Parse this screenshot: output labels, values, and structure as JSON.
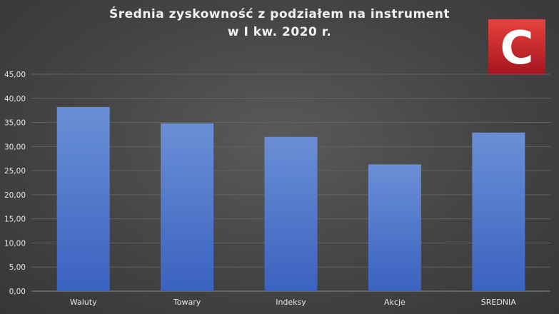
{
  "chart_data": {
    "type": "bar",
    "title_lines": [
      "Średnia zyskowność z podziałem na instrument",
      "w I kw. 2020 r."
    ],
    "categories": [
      "Waluty",
      "Towary",
      "Indeksy",
      "Akcje",
      "ŚREDNIA"
    ],
    "values": [
      38.2,
      34.8,
      32.0,
      26.3,
      32.9
    ],
    "ylim": [
      0,
      45
    ],
    "yticks": [
      "0,00",
      "5,00",
      "10,00",
      "15,00",
      "20,00",
      "25,00",
      "30,00",
      "35,00",
      "40,00",
      "45,00"
    ],
    "ytick_values": [
      0,
      5,
      10,
      15,
      20,
      25,
      30,
      35,
      40,
      45
    ],
    "grid": true,
    "bar_color_top": "#6b8fd6",
    "bar_color_bottom": "#3a62c0"
  },
  "logo": {
    "letter": "C",
    "color_top": "#e8423e",
    "color_bottom": "#a5141d"
  }
}
